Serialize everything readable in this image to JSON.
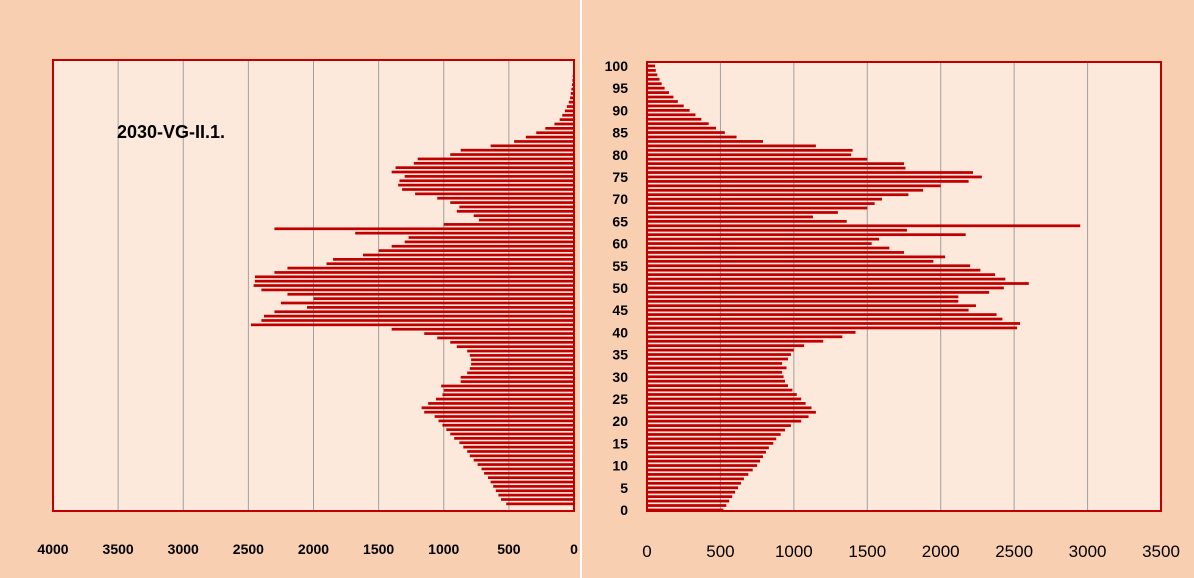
{
  "colors": {
    "outer_bg": "#F8CFB0",
    "plot_bg": "#FCE9DC",
    "bar": "#C00000",
    "plot_border": "#C00000",
    "grid": "#A0A0A0",
    "divider": "#FFFFFF"
  },
  "chart_data": [
    {
      "type": "bar",
      "orientation": "horizontal",
      "direction": "right-to-left",
      "annotation": "2030-VG-II.1.",
      "xlim": [
        0,
        4000
      ],
      "xticks": [
        "4000",
        "3500",
        "3000",
        "2500",
        "2000",
        "1500",
        "1000",
        "500",
        "0"
      ],
      "xtick_values": [
        4000,
        3500,
        3000,
        2500,
        2000,
        1500,
        1000,
        500,
        0
      ],
      "ages": [
        0,
        1,
        2,
        3,
        4,
        5,
        6,
        7,
        8,
        9,
        10,
        11,
        12,
        13,
        14,
        15,
        16,
        17,
        18,
        19,
        20,
        21,
        22,
        23,
        24,
        25,
        26,
        27,
        28,
        29,
        30,
        31,
        32,
        33,
        34,
        35,
        36,
        37,
        38,
        39,
        40,
        41,
        42,
        43,
        44,
        45,
        46,
        47,
        48,
        49,
        50,
        51,
        52,
        53,
        54,
        55,
        56,
        57,
        58,
        59,
        60,
        61,
        62,
        63,
        64,
        65,
        66,
        67,
        68,
        69,
        70,
        71,
        72,
        73,
        74,
        75,
        76,
        77,
        78,
        79,
        80,
        81,
        82,
        83,
        84,
        85,
        86,
        87,
        88,
        89,
        90,
        91,
        92,
        93,
        94,
        95,
        96,
        97,
        98,
        99,
        100
      ],
      "values": [
        520,
        560,
        580,
        600,
        620,
        640,
        660,
        690,
        710,
        740,
        770,
        800,
        820,
        850,
        880,
        920,
        950,
        980,
        1010,
        1040,
        1070,
        1150,
        1170,
        1120,
        1060,
        1010,
        1000,
        1020,
        870,
        870,
        820,
        800,
        790,
        790,
        800,
        820,
        900,
        950,
        1050,
        1150,
        1400,
        2480,
        2400,
        2380,
        2300,
        2050,
        2250,
        2000,
        2200,
        2400,
        2460,
        2450,
        2450,
        2300,
        2200,
        1900,
        1850,
        1620,
        1500,
        1400,
        1300,
        1270,
        1680,
        2300,
        1000,
        730,
        770,
        900,
        880,
        950,
        1050,
        1220,
        1320,
        1350,
        1340,
        1300,
        1400,
        1370,
        1230,
        1200,
        950,
        870,
        640,
        460,
        370,
        290,
        220,
        150,
        110,
        90,
        70,
        55,
        40,
        30,
        25,
        20,
        15,
        12,
        10,
        7,
        5
      ]
    },
    {
      "type": "bar",
      "orientation": "horizontal",
      "direction": "left-to-right",
      "xlim": [
        0,
        3500
      ],
      "xticks": [
        "0",
        "500",
        "1000",
        "1500",
        "2000",
        "2500",
        "3000",
        "3500"
      ],
      "xtick_values": [
        0,
        500,
        1000,
        1500,
        2000,
        2500,
        3000,
        3500
      ],
      "yticks": [
        "0",
        "5",
        "10",
        "15",
        "20",
        "25",
        "30",
        "35",
        "40",
        "45",
        "50",
        "55",
        "60",
        "65",
        "70",
        "75",
        "80",
        "85",
        "90",
        "95",
        "100"
      ],
      "ytick_values": [
        0,
        5,
        10,
        15,
        20,
        25,
        30,
        35,
        40,
        45,
        50,
        55,
        60,
        65,
        70,
        75,
        80,
        85,
        90,
        95,
        100
      ],
      "ages": [
        0,
        1,
        2,
        3,
        4,
        5,
        6,
        7,
        8,
        9,
        10,
        11,
        12,
        13,
        14,
        15,
        16,
        17,
        18,
        19,
        20,
        21,
        22,
        23,
        24,
        25,
        26,
        27,
        28,
        29,
        30,
        31,
        32,
        33,
        34,
        35,
        36,
        37,
        38,
        39,
        40,
        41,
        42,
        43,
        44,
        45,
        46,
        47,
        48,
        49,
        50,
        51,
        52,
        53,
        54,
        55,
        56,
        57,
        58,
        59,
        60,
        61,
        62,
        63,
        64,
        65,
        66,
        67,
        68,
        69,
        70,
        71,
        72,
        73,
        74,
        75,
        76,
        77,
        78,
        79,
        80,
        81,
        82,
        83,
        84,
        85,
        86,
        87,
        88,
        89,
        90,
        91,
        92,
        93,
        94,
        95,
        96,
        97,
        98,
        99,
        100
      ],
      "values": [
        520,
        540,
        560,
        580,
        600,
        620,
        640,
        660,
        690,
        720,
        750,
        770,
        790,
        810,
        830,
        860,
        880,
        910,
        940,
        980,
        1050,
        1100,
        1150,
        1120,
        1080,
        1050,
        1020,
        990,
        960,
        940,
        930,
        920,
        950,
        920,
        960,
        980,
        1000,
        1070,
        1200,
        1330,
        1420,
        2520,
        2540,
        2420,
        2380,
        2190,
        2240,
        2120,
        2120,
        2330,
        2430,
        2600,
        2440,
        2370,
        2270,
        2200,
        1950,
        2030,
        1750,
        1650,
        1530,
        1580,
        2170,
        1770,
        2950,
        1360,
        1130,
        1300,
        1500,
        1550,
        1600,
        1780,
        1880,
        2000,
        2190,
        2280,
        2220,
        1760,
        1750,
        1500,
        1390,
        1400,
        1150,
        790,
        610,
        530,
        470,
        420,
        370,
        330,
        290,
        250,
        210,
        180,
        150,
        120,
        100,
        85,
        70,
        60,
        55
      ]
    }
  ]
}
